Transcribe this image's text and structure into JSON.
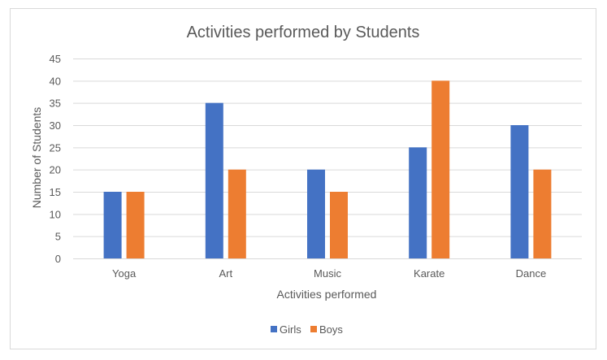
{
  "chart_data": {
    "type": "bar",
    "title": "Activities performed by Students",
    "xlabel": "Activities performed",
    "ylabel": "Number of Students",
    "categories": [
      "Yoga",
      "Art",
      "Music",
      "Karate",
      "Dance"
    ],
    "series": [
      {
        "name": "Girls",
        "color": "#4472c4",
        "values": [
          15,
          35,
          20,
          25,
          30
        ]
      },
      {
        "name": "Boys",
        "color": "#ed7d31",
        "values": [
          15,
          20,
          15,
          40,
          20
        ]
      }
    ],
    "ylim": [
      0,
      45
    ],
    "yticks": [
      0,
      5,
      10,
      15,
      20,
      25,
      30,
      35,
      40,
      45
    ],
    "grid": true,
    "legend": "bottom-center"
  }
}
